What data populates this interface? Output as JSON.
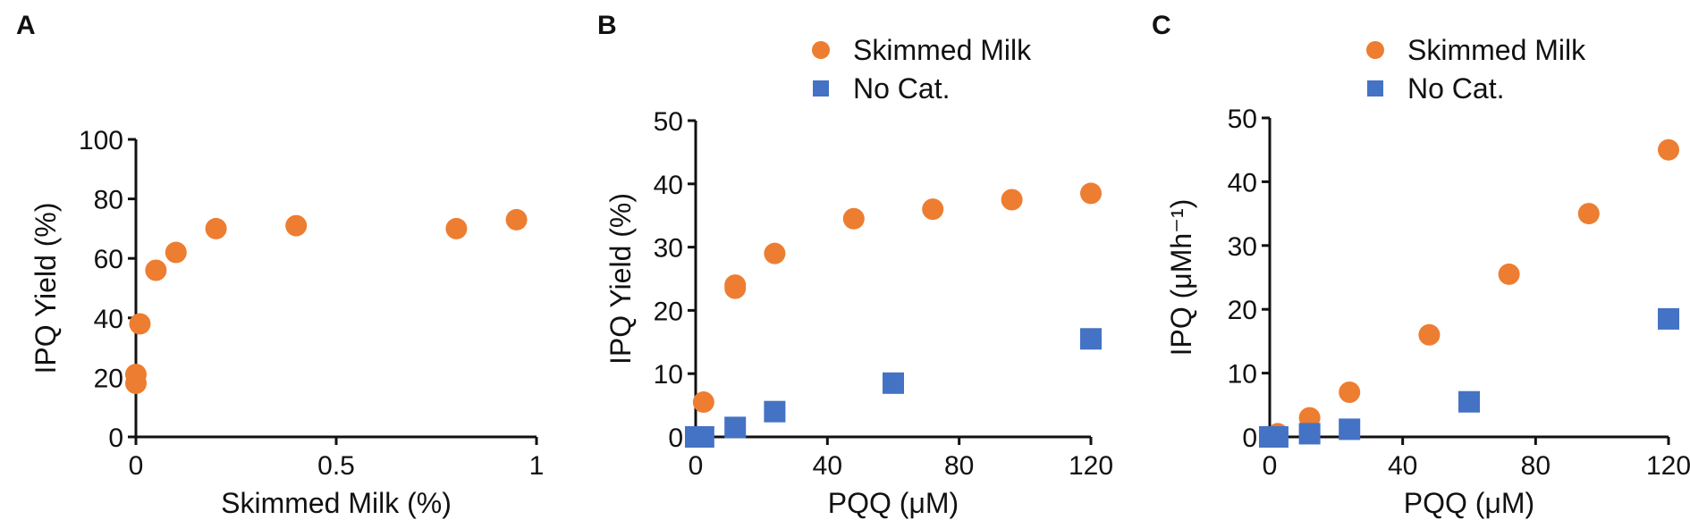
{
  "colors": {
    "orange": "#ED7D31",
    "blue": "#4472C4",
    "axis": "#111111"
  },
  "chart_data": [
    {
      "panel": "A",
      "type": "scatter",
      "title": "",
      "xlabel": "Skimmed Milk (%)",
      "ylabel": "IPQ Yield (%)",
      "xlim": [
        0,
        1
      ],
      "ylim": [
        0,
        100
      ],
      "xticks": [
        "0",
        "0.5",
        "1"
      ],
      "yticks": [
        "0",
        "20",
        "40",
        "60",
        "80",
        "100"
      ],
      "legend": [],
      "series": [
        {
          "name": "Skimmed Milk",
          "marker": "circle",
          "color": "#ED7D31",
          "x": [
            0,
            0,
            0.01,
            0.05,
            0.1,
            0.2,
            0.4,
            0.8,
            0.95
          ],
          "y": [
            18,
            21,
            38,
            56,
            62,
            70,
            71,
            70,
            73
          ]
        }
      ]
    },
    {
      "panel": "B",
      "type": "scatter",
      "title": "",
      "xlabel": "PQQ (μM)",
      "ylabel": "IPQ Yield (%)",
      "xlim": [
        0,
        120
      ],
      "ylim": [
        0,
        50
      ],
      "xticks": [
        "0",
        "40",
        "80",
        "120"
      ],
      "yticks": [
        "0",
        "10",
        "20",
        "30",
        "40",
        "50"
      ],
      "legend": [
        "Skimmed Milk",
        "No Cat."
      ],
      "series": [
        {
          "name": "Skimmed Milk",
          "marker": "circle",
          "color": "#ED7D31",
          "x": [
            0,
            2.4,
            12,
            12,
            24,
            48,
            72,
            96,
            120
          ],
          "y": [
            0,
            5.5,
            23.5,
            24,
            29,
            34.5,
            36,
            37.5,
            38.5
          ]
        },
        {
          "name": "No Cat.",
          "marker": "square",
          "color": "#4472C4",
          "x": [
            0,
            2.4,
            12,
            24,
            60,
            120
          ],
          "y": [
            0,
            0,
            1.5,
            4,
            8.5,
            15.5
          ]
        }
      ]
    },
    {
      "panel": "C",
      "type": "scatter",
      "title": "",
      "xlabel": "PQQ (μM)",
      "ylabel": "IPQ (μMh⁻¹)",
      "xlim": [
        0,
        120
      ],
      "ylim": [
        0,
        50
      ],
      "xticks": [
        "0",
        "40",
        "80",
        "120"
      ],
      "yticks": [
        "0",
        "10",
        "20",
        "30",
        "40",
        "50"
      ],
      "legend": [
        "Skimmed Milk",
        "No Cat."
      ],
      "series": [
        {
          "name": "Skimmed Milk",
          "marker": "circle",
          "color": "#ED7D31",
          "x": [
            0,
            2.4,
            12,
            24,
            48,
            72,
            96,
            120
          ],
          "y": [
            0,
            0.5,
            3,
            7,
            16,
            25.5,
            35,
            45
          ]
        },
        {
          "name": "No Cat.",
          "marker": "square",
          "color": "#4472C4",
          "x": [
            0,
            2.4,
            12,
            24,
            60,
            120
          ],
          "y": [
            0,
            0,
            0.5,
            1.2,
            5.5,
            18.5
          ]
        }
      ]
    }
  ]
}
